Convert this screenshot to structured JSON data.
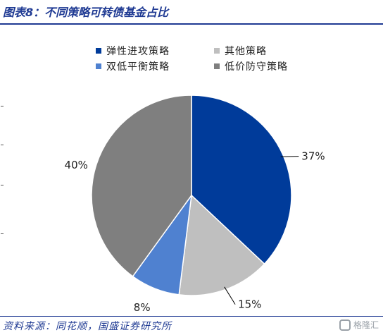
{
  "header": {
    "title": "图表8：不同策略可转债基金占比"
  },
  "footer": {
    "source": "资料来源：同花顺，国盛证券研究所",
    "watermark": "格隆汇"
  },
  "chart_data": {
    "type": "pie",
    "title": "",
    "legend_position": "top",
    "categories": [
      "弹性进攻策略",
      "其他策略",
      "双低平衡策略",
      "低价防守策略"
    ],
    "values": [
      37,
      15,
      8,
      40
    ],
    "value_labels": [
      "37%",
      "15%",
      "8%",
      "40%"
    ],
    "colors": [
      "#003b9a",
      "#bfbfbf",
      "#4f81d0",
      "#7f7f7f"
    ],
    "legend_order": [
      0,
      1,
      2,
      3
    ]
  }
}
